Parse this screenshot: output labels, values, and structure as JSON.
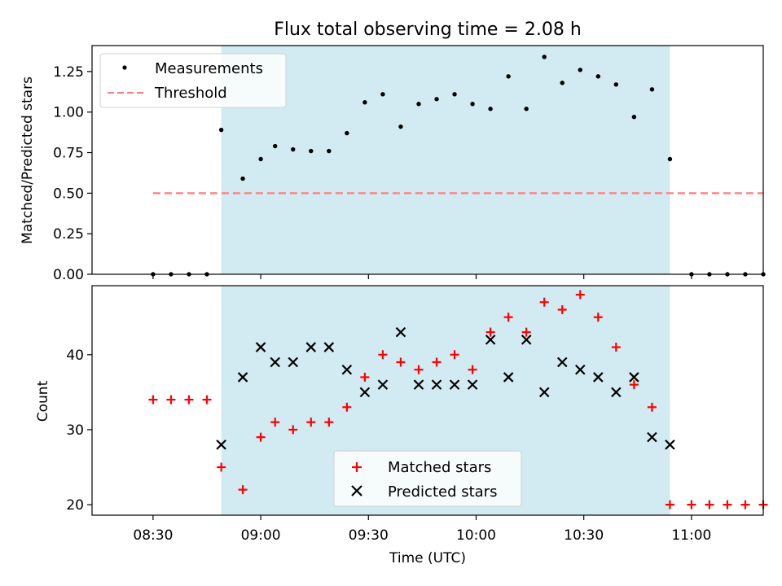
{
  "title": "Flux total observing time = 2.08 h",
  "colors": {
    "shade": "#add8e6",
    "matched": "#ff0000",
    "predicted": "#000000",
    "threshold": "#ff7f7f",
    "measurement": "#000000"
  },
  "chart_data": [
    {
      "type": "scatter",
      "ylabel": "Matched/Predicted stars",
      "ylim": [
        0,
        1.41
      ],
      "yticks": [
        0.0,
        0.25,
        0.5,
        0.75,
        1.0,
        1.25
      ],
      "ytick_labels": [
        "0.00",
        "0.25",
        "0.50",
        "0.75",
        "1.00",
        "1.25"
      ],
      "xlim": [
        "08:13",
        "11:20"
      ],
      "shaded_interval": [
        "08:49",
        "10:54"
      ],
      "legend": {
        "placement": "top-left",
        "entries": [
          "Measurements",
          "Threshold"
        ]
      },
      "series": [
        {
          "name": "Measurements",
          "marker": "dot",
          "points": [
            [
              "08:30",
              0
            ],
            [
              "08:35",
              0
            ],
            [
              "08:40",
              0
            ],
            [
              "08:45",
              0
            ],
            [
              "08:49",
              0.89
            ],
            [
              "08:55",
              0.59
            ],
            [
              "09:00",
              0.71
            ],
            [
              "09:04",
              0.79
            ],
            [
              "09:09",
              0.77
            ],
            [
              "09:14",
              0.76
            ],
            [
              "09:19",
              0.76
            ],
            [
              "09:24",
              0.87
            ],
            [
              "09:29",
              1.06
            ],
            [
              "09:34",
              1.11
            ],
            [
              "09:39",
              0.91
            ],
            [
              "09:44",
              1.05
            ],
            [
              "09:49",
              1.08
            ],
            [
              "09:54",
              1.11
            ],
            [
              "09:59",
              1.05
            ],
            [
              "10:04",
              1.02
            ],
            [
              "10:09",
              1.22
            ],
            [
              "10:14",
              1.02
            ],
            [
              "10:19",
              1.34
            ],
            [
              "10:24",
              1.18
            ],
            [
              "10:29",
              1.26
            ],
            [
              "10:34",
              1.22
            ],
            [
              "10:39",
              1.17
            ],
            [
              "10:44",
              0.97
            ],
            [
              "10:49",
              1.14
            ],
            [
              "10:54",
              0.71
            ],
            [
              "11:00",
              0
            ],
            [
              "11:05",
              0
            ],
            [
              "11:10",
              0
            ],
            [
              "11:15",
              0
            ],
            [
              "11:20",
              0
            ]
          ]
        },
        {
          "name": "Threshold",
          "marker": "dashed-line",
          "points": [
            [
              "08:30",
              0.5
            ],
            [
              "11:20",
              0.5
            ]
          ]
        }
      ]
    },
    {
      "type": "scatter",
      "xlabel": "Time (UTC)",
      "ylabel": "Count",
      "ylim": [
        18.6,
        49.2
      ],
      "yticks": [
        20,
        30,
        40
      ],
      "ytick_labels": [
        "20",
        "30",
        "40"
      ],
      "xticks": [
        "08:30",
        "09:00",
        "09:30",
        "10:00",
        "10:30",
        "11:00"
      ],
      "xlim": [
        "08:13",
        "11:20"
      ],
      "shaded_interval": [
        "08:49",
        "10:54"
      ],
      "legend": {
        "placement": "lower-center",
        "entries": [
          "Matched stars",
          "Predicted stars"
        ]
      },
      "series": [
        {
          "name": "Matched stars",
          "marker": "plus",
          "points": [
            [
              "08:30",
              34
            ],
            [
              "08:35",
              34
            ],
            [
              "08:40",
              34
            ],
            [
              "08:45",
              34
            ],
            [
              "08:49",
              25
            ],
            [
              "08:55",
              22
            ],
            [
              "09:00",
              29
            ],
            [
              "09:04",
              31
            ],
            [
              "09:09",
              30
            ],
            [
              "09:14",
              31
            ],
            [
              "09:19",
              31
            ],
            [
              "09:24",
              33
            ],
            [
              "09:29",
              37
            ],
            [
              "09:34",
              40
            ],
            [
              "09:39",
              39
            ],
            [
              "09:44",
              38
            ],
            [
              "09:49",
              39
            ],
            [
              "09:54",
              40
            ],
            [
              "09:59",
              38
            ],
            [
              "10:04",
              43
            ],
            [
              "10:09",
              45
            ],
            [
              "10:14",
              43
            ],
            [
              "10:19",
              47
            ],
            [
              "10:24",
              46
            ],
            [
              "10:29",
              48
            ],
            [
              "10:34",
              45
            ],
            [
              "10:39",
              41
            ],
            [
              "10:44",
              36
            ],
            [
              "10:49",
              33
            ],
            [
              "10:54",
              20
            ],
            [
              "11:00",
              20
            ],
            [
              "11:05",
              20
            ],
            [
              "11:10",
              20
            ],
            [
              "11:15",
              20
            ],
            [
              "11:20",
              20
            ]
          ]
        },
        {
          "name": "Predicted stars",
          "marker": "x",
          "points": [
            [
              "08:49",
              28
            ],
            [
              "08:55",
              37
            ],
            [
              "09:00",
              41
            ],
            [
              "09:04",
              39
            ],
            [
              "09:09",
              39
            ],
            [
              "09:14",
              41
            ],
            [
              "09:19",
              41
            ],
            [
              "09:24",
              38
            ],
            [
              "09:29",
              35
            ],
            [
              "09:34",
              36
            ],
            [
              "09:39",
              43
            ],
            [
              "09:44",
              36
            ],
            [
              "09:49",
              36
            ],
            [
              "09:54",
              36
            ],
            [
              "09:59",
              36
            ],
            [
              "10:04",
              42
            ],
            [
              "10:09",
              37
            ],
            [
              "10:14",
              42
            ],
            [
              "10:19",
              35
            ],
            [
              "10:24",
              39
            ],
            [
              "10:29",
              38
            ],
            [
              "10:34",
              37
            ],
            [
              "10:39",
              35
            ],
            [
              "10:44",
              37
            ],
            [
              "10:49",
              29
            ],
            [
              "10:54",
              28
            ]
          ]
        }
      ]
    }
  ]
}
